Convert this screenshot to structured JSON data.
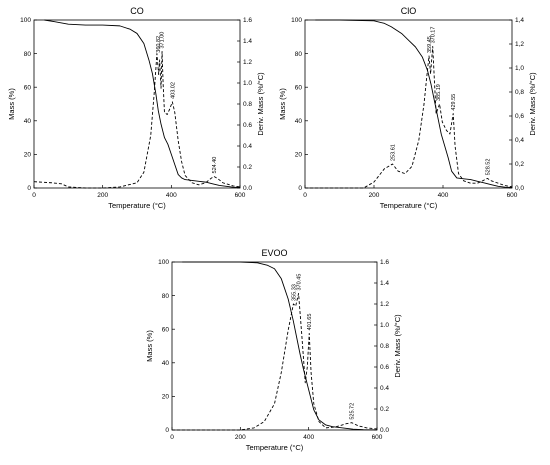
{
  "chart_data": [
    {
      "type": "line",
      "title": "CO",
      "xlabel": "Temperature (°C)",
      "ylabel": "Mass (%)",
      "y2label": "Deriv. Mass (%/°C)",
      "xlim": [
        0,
        600
      ],
      "ylim": [
        0,
        100
      ],
      "y2lim": [
        0,
        1.6
      ],
      "xticks": [
        "0",
        "200",
        "400",
        "600"
      ],
      "yticks": [
        "0",
        "20",
        "40",
        "60",
        "80",
        "100"
      ],
      "y2ticks": [
        "0.0",
        "0.2",
        "0.4",
        "0.6",
        "0.8",
        "1.0",
        "1.2",
        "1.4",
        "1.6"
      ],
      "series": [
        {
          "style": "solid",
          "axis": "left",
          "x": [
            30,
            60,
            100,
            150,
            200,
            250,
            280,
            300,
            320,
            335,
            345,
            355,
            362,
            370,
            380,
            390,
            400,
            410,
            420,
            430,
            440,
            460,
            480,
            500,
            520,
            540,
            560,
            580,
            600
          ],
          "values": [
            100,
            99,
            97.5,
            97,
            97,
            96.5,
            94.5,
            92,
            86,
            76,
            68,
            56,
            46,
            38,
            30,
            26,
            20,
            14,
            8,
            6,
            5,
            4.5,
            4,
            3.5,
            2.5,
            1.5,
            1,
            0.5,
            0.3
          ]
        },
        {
          "style": "dashed",
          "axis": "right",
          "x": [
            0,
            50,
            80,
            100,
            150,
            200,
            250,
            300,
            320,
            340,
            350,
            358,
            363,
            366,
            370,
            373,
            376,
            380,
            388,
            395,
            403,
            410,
            420,
            430,
            440,
            460,
            480,
            500,
            515,
            524.4,
            535,
            550,
            580,
            600
          ],
          "values": [
            0.06,
            0.05,
            0.04,
            0.01,
            0,
            0,
            0.01,
            0.05,
            0.15,
            0.5,
            0.9,
            1.28,
            1.08,
            1.22,
            0.95,
            1.3,
            1.0,
            0.72,
            0.7,
            0.75,
            0.82,
            0.72,
            0.45,
            0.25,
            0.12,
            0.05,
            0.03,
            0.05,
            0.09,
            0.11,
            0.09,
            0.05,
            0.02,
            0.01
          ]
        }
      ],
      "annotations": [
        {
          "text": "360.82",
          "x": 360.82,
          "y2": 1.26
        },
        {
          "text": "371.00",
          "x": 371.0,
          "y2": 1.3
        },
        {
          "text": "403.02",
          "x": 403.02,
          "y2": 0.82
        },
        {
          "text": "524.40",
          "x": 524.4,
          "y2": 0.11
        }
      ]
    },
    {
      "type": "line",
      "title": "ClO",
      "xlabel": "Temperature (°C)",
      "ylabel": "Mass (%)",
      "y2label": "Deriv. Mass (%/°C)",
      "xlim": [
        0,
        600
      ],
      "ylim": [
        0,
        100
      ],
      "y2lim": [
        0,
        1.4
      ],
      "xticks": [
        "0",
        "200",
        "400",
        "600"
      ],
      "yticks": [
        "0",
        "20",
        "40",
        "60",
        "80",
        "100"
      ],
      "y2ticks": [
        "0,0",
        "0,2",
        "0,4",
        "0,6",
        "0,8",
        "1,0",
        "1,2",
        "1,4"
      ],
      "series": [
        {
          "style": "solid",
          "axis": "left",
          "x": [
            30,
            100,
            200,
            230,
            250,
            280,
            300,
            320,
            340,
            355,
            365,
            375,
            385,
            395,
            405,
            415,
            425,
            440,
            460,
            480,
            500,
            520,
            540,
            560,
            580,
            600
          ],
          "values": [
            100,
            100,
            99.5,
            98,
            96,
            92,
            88,
            84,
            78,
            70,
            62,
            52,
            42,
            32,
            25,
            18,
            10,
            6,
            5.5,
            5,
            4,
            3,
            2,
            1,
            0.5,
            0.3
          ]
        },
        {
          "style": "dashed",
          "axis": "right",
          "x": [
            0,
            100,
            170,
            200,
            230,
            253.61,
            270,
            290,
            310,
            330,
            345,
            352,
            359.45,
            364,
            370.17,
            375,
            380,
            385.19,
            390,
            398,
            410,
            420,
            429.55,
            435,
            445,
            460,
            480,
            500,
            515,
            528.52,
            540,
            560,
            580,
            600
          ],
          "values": [
            0,
            0,
            0,
            0.05,
            0.16,
            0.2,
            0.14,
            0.12,
            0.18,
            0.4,
            0.7,
            0.9,
            1.1,
            0.95,
            1.18,
            0.9,
            0.62,
            0.66,
            0.7,
            0.55,
            0.48,
            0.45,
            0.62,
            0.35,
            0.12,
            0.06,
            0.04,
            0.04,
            0.06,
            0.08,
            0.06,
            0.04,
            0.02,
            0.01
          ]
        }
      ],
      "annotations": [
        {
          "text": "253.61",
          "x": 253.61,
          "y2": 0.2
        },
        {
          "text": "359.45",
          "x": 359.45,
          "y2": 1.1
        },
        {
          "text": "370.17",
          "x": 370.17,
          "y2": 1.18
        },
        {
          "text": "385.19",
          "x": 385.19,
          "y2": 0.7
        },
        {
          "text": "429.55",
          "x": 429.55,
          "y2": 0.62
        },
        {
          "text": "528.52",
          "x": 528.52,
          "y2": 0.08
        }
      ]
    },
    {
      "type": "line",
      "title": "EVOO",
      "xlabel": "Temperature (°C)",
      "ylabel": "Mass (%)",
      "y2label": "Deriv. Mass (%/°C)",
      "xlim": [
        0,
        600
      ],
      "ylim": [
        0,
        100
      ],
      "y2lim": [
        0,
        1.6
      ],
      "xticks": [
        "0",
        "200",
        "400",
        "600"
      ],
      "yticks": [
        "0",
        "20",
        "40",
        "60",
        "80",
        "100"
      ],
      "y2ticks": [
        "0.0",
        "0.2",
        "0.4",
        "0.6",
        "0.8",
        "1.0",
        "1.2",
        "1.4",
        "1.6"
      ],
      "series": [
        {
          "style": "solid",
          "axis": "left",
          "x": [
            30,
            200,
            250,
            280,
            300,
            320,
            340,
            355,
            365,
            375,
            385,
            395,
            405,
            415,
            430,
            450,
            470,
            500,
            530,
            560,
            600
          ],
          "values": [
            100,
            100,
            99.5,
            98,
            96,
            90,
            78,
            65,
            55,
            45,
            36,
            28,
            20,
            12,
            6,
            3,
            2,
            1.2,
            0.5,
            0.2,
            0.1
          ]
        },
        {
          "style": "dashed",
          "axis": "right",
          "x": [
            0,
            200,
            240,
            270,
            300,
            320,
            340,
            355.33,
            362,
            370.45,
            380,
            390,
            396,
            401.65,
            407,
            415,
            430,
            450,
            480,
            510,
            525.72,
            545,
            570,
            600
          ],
          "values": [
            0,
            0,
            0.02,
            0.08,
            0.25,
            0.55,
            0.95,
            1.2,
            1.18,
            1.3,
            0.9,
            0.45,
            0.6,
            0.92,
            0.55,
            0.25,
            0.08,
            0.02,
            0.03,
            0.06,
            0.07,
            0.04,
            0.02,
            0.01
          ]
        }
      ],
      "annotations": [
        {
          "text": "355.33",
          "x": 355.33,
          "y2": 1.2
        },
        {
          "text": "370.45",
          "x": 370.45,
          "y2": 1.3
        },
        {
          "text": "401.65",
          "x": 401.65,
          "y2": 0.92
        },
        {
          "text": "525.72",
          "x": 525.72,
          "y2": 0.07
        }
      ]
    }
  ]
}
